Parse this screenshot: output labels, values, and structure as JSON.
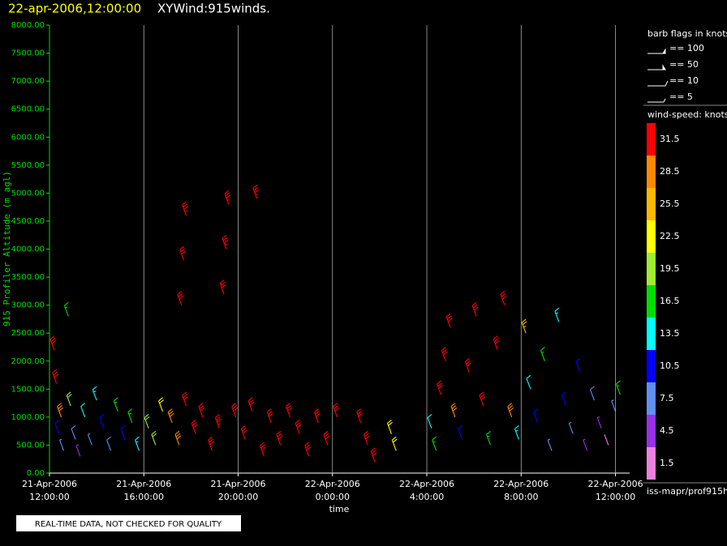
{
  "chart_data": {
    "type": "wind-barb",
    "title_time": "22-apr-2006,12:00:00",
    "title": "XYWind:915winds.",
    "x_label": "time",
    "y_label": "915 Profiler Altitude (m agl)",
    "xlim": [
      0,
      24.6
    ],
    "ylim": [
      0,
      8000
    ],
    "xticks": [
      {
        "value": 0,
        "label": "21-Apr-2006 12:00:00"
      },
      {
        "value": 4,
        "label": "21-Apr-2006 16:00:00"
      },
      {
        "value": 8,
        "label": "21-Apr-2006 20:00:00"
      },
      {
        "value": 12,
        "label": "22-Apr-2006 0:00:00"
      },
      {
        "value": 16,
        "label": "22-Apr-2006 4:00:00"
      },
      {
        "value": 20,
        "label": "22-Apr-2006 8:00:00"
      },
      {
        "value": 24,
        "label": "22-Apr-2006 12:00:00"
      }
    ],
    "yticks": [
      {
        "value": 0,
        "label": "0.00"
      },
      {
        "value": 500,
        "label": "500.00"
      },
      {
        "value": 1000,
        "label": "1000.00"
      },
      {
        "value": 1500,
        "label": "1500.00"
      },
      {
        "value": 2000,
        "label": "2000.00"
      },
      {
        "value": 2500,
        "label": "2500.00"
      },
      {
        "value": 3000,
        "label": "3000.00"
      },
      {
        "value": 3500,
        "label": "3500.00"
      },
      {
        "value": 4000,
        "label": "4000.00"
      },
      {
        "value": 4500,
        "label": "4500.00"
      },
      {
        "value": 5000,
        "label": "5000.00"
      },
      {
        "value": 5500,
        "label": "5500.00"
      },
      {
        "value": 6000,
        "label": "6000.00"
      },
      {
        "value": 6500,
        "label": "6500.00"
      },
      {
        "value": 7000,
        "label": "7000.00"
      },
      {
        "value": 7500,
        "label": "7500.00"
      },
      {
        "value": 8000,
        "label": "8000.00"
      }
    ],
    "grid": "x",
    "barbs": {
      "x": [
        0.2,
        0.3,
        0.5,
        0.4,
        0.6,
        0.8,
        0.9,
        1.1,
        1.3,
        1.5,
        1.8,
        2.0,
        2.3,
        2.6,
        2.9,
        3.2,
        3.5,
        3.8,
        4.2,
        4.5,
        4.8,
        5.2,
        5.5,
        5.8,
        5.6,
        5.7,
        5.8,
        6.2,
        6.5,
        6.9,
        7.2,
        7.4,
        7.5,
        7.6,
        7.9,
        8.3,
        8.6,
        8.8,
        9.1,
        9.4,
        9.8,
        10.2,
        10.6,
        11.0,
        11.4,
        11.8,
        12.2,
        13.2,
        13.5,
        13.8,
        14.5,
        14.7,
        16.2,
        16.4,
        16.6,
        16.8,
        17.0,
        17.2,
        17.5,
        17.8,
        18.1,
        18.4,
        18.7,
        19.0,
        19.3,
        19.6,
        19.9,
        20.2,
        20.4,
        20.7,
        21.0,
        21.3,
        21.6,
        21.9,
        22.2,
        22.5,
        22.8,
        23.1,
        23.4,
        23.7,
        24.0,
        24.2
      ],
      "altitude": [
        2200,
        1600,
        1000,
        700,
        400,
        2800,
        1200,
        600,
        300,
        1000,
        500,
        1300,
        800,
        400,
        1100,
        600,
        900,
        400,
        800,
        500,
        1100,
        900,
        500,
        1200,
        3000,
        3800,
        4600,
        700,
        1000,
        400,
        800,
        3200,
        4000,
        4800,
        1000,
        600,
        1100,
        4900,
        300,
        900,
        500,
        1000,
        700,
        300,
        900,
        500,
        1000,
        900,
        500,
        200,
        700,
        400,
        800,
        400,
        1400,
        2000,
        2600,
        1000,
        600,
        1800,
        2800,
        1200,
        500,
        2200,
        3000,
        1000,
        600,
        2500,
        1500,
        900,
        2000,
        400,
        2700,
        1200,
        700,
        1800,
        400,
        1300,
        800,
        500,
        1100,
        1400
      ],
      "speed": [
        33,
        32,
        30,
        12,
        8,
        18,
        20,
        10,
        6,
        14,
        9,
        16,
        12,
        10,
        17,
        13,
        19,
        15,
        22,
        20,
        23,
        31,
        30,
        33,
        33,
        34,
        35,
        33,
        34,
        32,
        35,
        34,
        35,
        36,
        33,
        34,
        33,
        35,
        32,
        34,
        33,
        34,
        32,
        33,
        34,
        33,
        32,
        33,
        34,
        32,
        23,
        24,
        14,
        18,
        32,
        33,
        34,
        30,
        12,
        33,
        34,
        32,
        18,
        33,
        34,
        31,
        16,
        27,
        14,
        12,
        17,
        9,
        15,
        11,
        8,
        13,
        5,
        10,
        6,
        4,
        8,
        18
      ]
    },
    "barb_legend": {
      "title": "barb flags in knots",
      "entries": [
        "== 100",
        "== 50",
        "== 10",
        "== 5"
      ]
    },
    "colorbar": {
      "title": "wind-speed: knots",
      "levels": [
        1.5,
        4.5,
        7.5,
        10.5,
        13.5,
        16.5,
        19.5,
        22.5,
        25.5,
        28.5,
        31.5
      ],
      "colors": [
        "#f080e0",
        "#9a30e8",
        "#6090f0",
        "#0000ff",
        "#00ffff",
        "#00dd00",
        "#a0ee30",
        "#ffff00",
        "#ffb800",
        "#ff8800",
        "#ff0000"
      ]
    },
    "source": "iss-mapr/prof915h",
    "footer": "REAL-TIME DATA, NOT CHECKED FOR QUALITY"
  }
}
